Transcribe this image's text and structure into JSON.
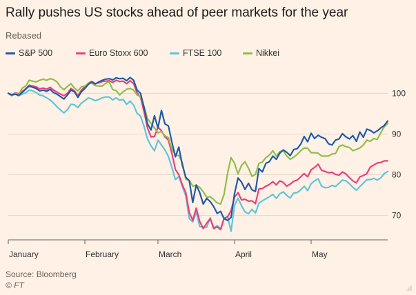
{
  "header": {
    "title": "Rally pushes US stocks ahead of peer markets for the year",
    "subtitle": "Rebased"
  },
  "footer": {
    "source": "Source: Bloomberg",
    "credit": "© FT"
  },
  "chart_data": {
    "type": "line",
    "title": "Rally pushes US stocks ahead of peer markets for the year",
    "subtitle": "Rebased",
    "ylim": [
      64,
      106
    ],
    "yticks": [
      70,
      80,
      90,
      100
    ],
    "xlim": [
      0,
      109
    ],
    "xticks": [
      {
        "label": "January",
        "x": 0
      },
      {
        "label": "February",
        "x": 22
      },
      {
        "label": "March",
        "x": 43
      },
      {
        "label": "April",
        "x": 65
      },
      {
        "label": "May",
        "x": 87
      }
    ],
    "grid": true,
    "legend_position": "top",
    "series": [
      {
        "name": "S&P 500",
        "color": "#1f5aa8",
        "values": [
          100,
          99.6,
          99.8,
          99.5,
          100.2,
          101,
          101.8,
          101.5,
          101.2,
          100.6,
          100.8,
          100.5,
          101,
          100.2,
          99.8,
          99.2,
          98.6,
          99.6,
          100.8,
          100.4,
          99,
          100.4,
          101.2,
          102.2,
          102.8,
          102.3,
          102.8,
          103.2,
          103.5,
          103.6,
          103.3,
          103.8,
          103.6,
          103.7,
          103.1,
          103.9,
          103.2,
          100.8,
          100,
          96.5,
          92.5,
          91,
          94.5,
          91.5,
          95.8,
          92.5,
          92,
          88,
          84.4,
          86.8,
          82.4,
          79.4,
          78.5,
          73.2,
          77.5,
          75.6,
          72.8,
          74.2,
          73.4,
          72.2,
          70.5,
          71,
          69.2,
          68.8,
          69.5,
          75.4,
          79.2,
          78.2,
          76.4,
          77.9,
          76.3,
          75.9,
          81.5,
          80.7,
          82.8,
          83.2,
          84.6,
          83.8,
          85.3,
          86.1,
          85.5,
          84.7,
          86.2,
          86.4,
          87.5,
          89.4,
          88.1,
          90.2,
          88.9,
          89.7,
          89.2,
          88.9,
          87.6,
          87.3,
          88.5,
          88.8,
          90.1,
          89.3,
          88.8,
          89.6,
          88.2,
          90.5,
          89.2,
          91.2,
          90.9,
          90.3,
          90.8,
          91.5,
          92.1,
          93.2
        ]
      },
      {
        "name": "Euro Stoxx 600",
        "color": "#e8407a",
        "values": [
          100,
          99.6,
          100.1,
          99.9,
          100.5,
          101.1,
          102,
          101.8,
          101.6,
          101.1,
          101.3,
          101,
          101.5,
          100.8,
          100.3,
          99.8,
          99.4,
          100,
          101.2,
          100.6,
          99.4,
          100.8,
          101.6,
          102.5,
          102.9,
          102.4,
          102.6,
          102.9,
          103,
          103.1,
          102.7,
          103.2,
          102.9,
          103,
          102.4,
          103.1,
          102.4,
          100.1,
          99,
          95.5,
          91.5,
          89.3,
          89.4,
          91.7,
          90.8,
          89.3,
          88.5,
          85.2,
          81.3,
          80,
          77.5,
          75.6,
          70.7,
          68.8,
          71.8,
          68.5,
          66.8,
          68.1,
          69.2,
          66.8,
          67.2,
          66.5,
          69.3,
          69.6,
          71.2,
          74.5,
          75.6,
          73.8,
          74,
          73.5,
          73.6,
          72.9,
          76.5,
          76.6,
          77.2,
          77.6,
          78.3,
          77.5,
          78.5,
          78.1,
          77.2,
          77.7,
          78.4,
          78.7,
          79.5,
          80.3,
          79.5,
          81.2,
          81.8,
          82.6,
          81.1,
          80.8,
          80.5,
          80.6,
          80.1,
          79.9,
          80.7,
          80.2,
          79.3,
          78.5,
          78,
          79.5,
          79.8,
          80.3,
          81.9,
          82.4,
          82.9,
          83,
          83.4,
          83.4
        ]
      },
      {
        "name": "FTSE 100",
        "color": "#5fc5d9",
        "values": [
          100,
          99.5,
          99.8,
          99.4,
          99.8,
          100.1,
          100.8,
          100.6,
          100.2,
          99.6,
          99.4,
          98.9,
          98.4,
          97.6,
          96.7,
          95.9,
          95.2,
          96,
          97.3,
          97.2,
          96.5,
          97.6,
          98.2,
          98.9,
          98.6,
          98.2,
          98.5,
          98.9,
          99.1,
          99.1,
          98.4,
          98.9,
          98.3,
          98.5,
          97.3,
          98.1,
          97.1,
          95.1,
          94.4,
          91.9,
          88.8,
          87.1,
          85.9,
          88.5,
          87.3,
          86.1,
          84.5,
          81.8,
          78.8,
          79.6,
          77.1,
          74.8,
          69.2,
          68.4,
          70.8,
          67.3,
          67.1,
          67.1,
          69.4,
          67,
          67.5,
          66.8,
          69.2,
          69.8,
          66.1,
          72.5,
          74.2,
          72.4,
          70.9,
          70.4,
          71.5,
          70.6,
          73,
          73.6,
          74.1,
          74.6,
          75.2,
          74.2,
          75.3,
          75.8,
          74.9,
          74.3,
          75.5,
          75.6,
          76.3,
          77.2,
          76.1,
          77.8,
          78.5,
          79,
          77.2,
          76.8,
          76.9,
          77.4,
          77.1,
          77.9,
          78.7,
          78.5,
          77.8,
          76.9,
          76.2,
          77.1,
          77.9,
          78.8,
          78.8,
          79.1,
          78.7,
          79.2,
          80.3,
          80.8
        ]
      },
      {
        "name": "Nikkei",
        "color": "#8fbf4a",
        "values": [
          100,
          99.4,
          100,
          99.7,
          101.3,
          101.8,
          103.2,
          103,
          102.8,
          103.2,
          103.5,
          103.2,
          103.6,
          103.4,
          102.8,
          101.6,
          100.9,
          101.7,
          102.4,
          101.3,
          100.6,
          101.6,
          101.8,
          102.5,
          102.5,
          101.9,
          101.8,
          101.8,
          102.5,
          102.8,
          100.9,
          100.7,
          99.6,
          100.4,
          101,
          101.2,
          100.8,
          99.6,
          99.2,
          96.8,
          93.8,
          92.6,
          91.5,
          90.3,
          90.6,
          89.6,
          89.1,
          86.3,
          84.9,
          84.7,
          83,
          78.9,
          78.6,
          77.2,
          77.4,
          76.9,
          75.8,
          74.5,
          74.6,
          73.9,
          73.1,
          72.8,
          75.2,
          80.4,
          84.2,
          82.8,
          80.2,
          82.3,
          83.2,
          81.6,
          79.6,
          80.1,
          82.8,
          83.1,
          84.2,
          84.8,
          85.9,
          84.6,
          85.7,
          85.9,
          84.6,
          83.8,
          84.3,
          85,
          85.9,
          86.6,
          86.5,
          85.4,
          85.4,
          85.3,
          84.6,
          84.6,
          84.6,
          85.1,
          85.2,
          86.9,
          87.3,
          86.9,
          86.7,
          85.9,
          86.2,
          86.6,
          87.3,
          88.5,
          88.2,
          88.9,
          88.7,
          90.3,
          91.8,
          92.6
        ]
      }
    ]
  }
}
